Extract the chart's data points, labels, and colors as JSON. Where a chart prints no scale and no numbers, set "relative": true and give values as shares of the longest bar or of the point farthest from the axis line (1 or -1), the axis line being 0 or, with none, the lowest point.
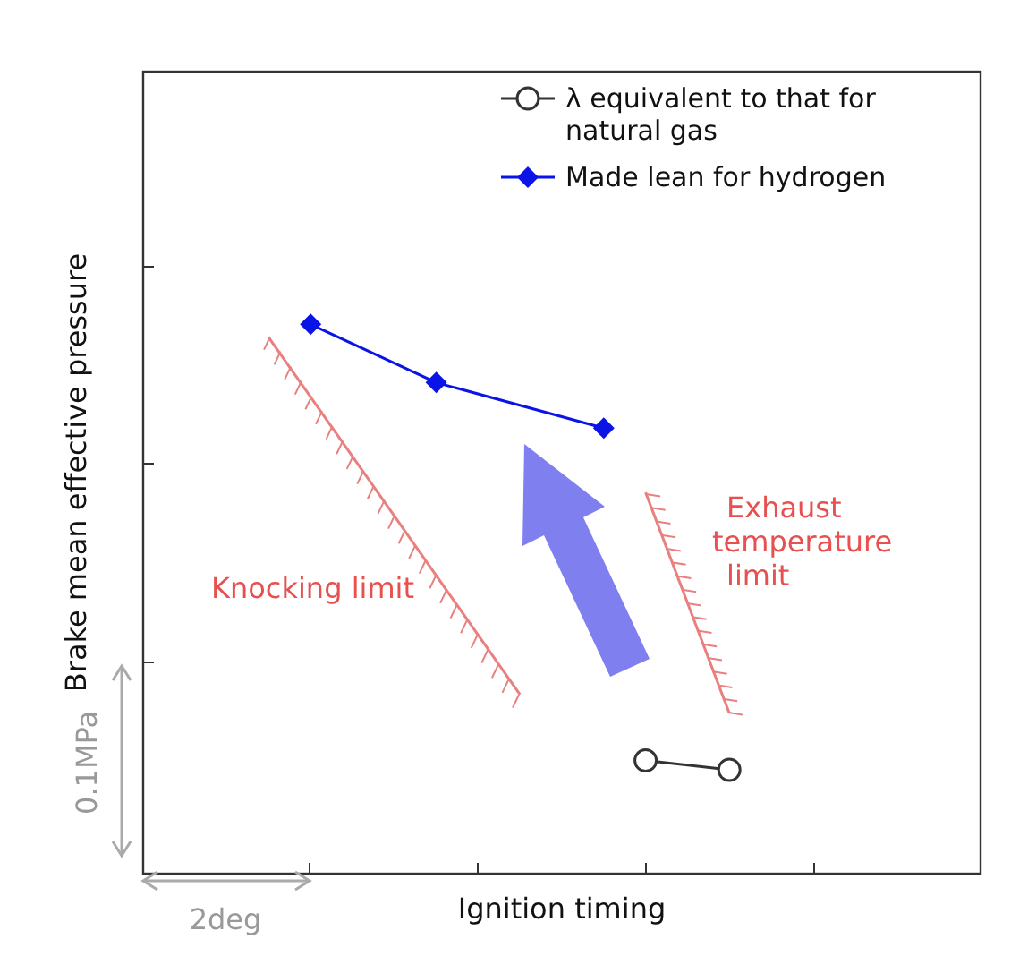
{
  "chart_data": {
    "type": "line",
    "relative": true,
    "xlabel": "Ignition timing",
    "ylabel": "Brake mean effective pressure",
    "legend": "top right",
    "categories": [
      null,
      null,
      null,
      null,
      null,
      null,
      null,
      null,
      null,
      null,
      null,
      null,
      null,
      null,
      null,
      null,
      null,
      null,
      null,
      null,
      null
    ],
    "series": [
      {
        "name": "λ equivalent to that for natural gas",
        "color": "#333333",
        "marker": "circle",
        "values": [
          null,
          null,
          null,
          null,
          null,
          null,
          null,
          null,
          null,
          null,
          null,
          null,
          0.206,
          null,
          0.189,
          null,
          null,
          null,
          null,
          null,
          null
        ]
      },
      {
        "name": "Made lean for hydrogen",
        "color": "#0a14e6",
        "marker": "diamond",
        "values": [
          null,
          null,
          null,
          null,
          1,
          null,
          null,
          0.894,
          null,
          null,
          null,
          0.811,
          null,
          null,
          null,
          null,
          null,
          null,
          null,
          null,
          null
        ]
      },
      {
        "name": "Knocking limit",
        "color": "#e88080",
        "marker": "none",
        "values": [
          null,
          null,
          null,
          0.976,
          null,
          null,
          null,
          null,
          null,
          0.326,
          null,
          null,
          null,
          null,
          null,
          null,
          null,
          null,
          null,
          null,
          null
        ]
      },
      {
        "name": "Exhaust temperature limit",
        "color": "#e88080",
        "marker": "none",
        "values": [
          null,
          null,
          null,
          null,
          null,
          null,
          null,
          null,
          null,
          null,
          null,
          null,
          0.694,
          null,
          0.292,
          null,
          null,
          null,
          null,
          null,
          null
        ]
      }
    ],
    "annotations": [
      "0.1MPa",
      "2deg"
    ]
  }
}
